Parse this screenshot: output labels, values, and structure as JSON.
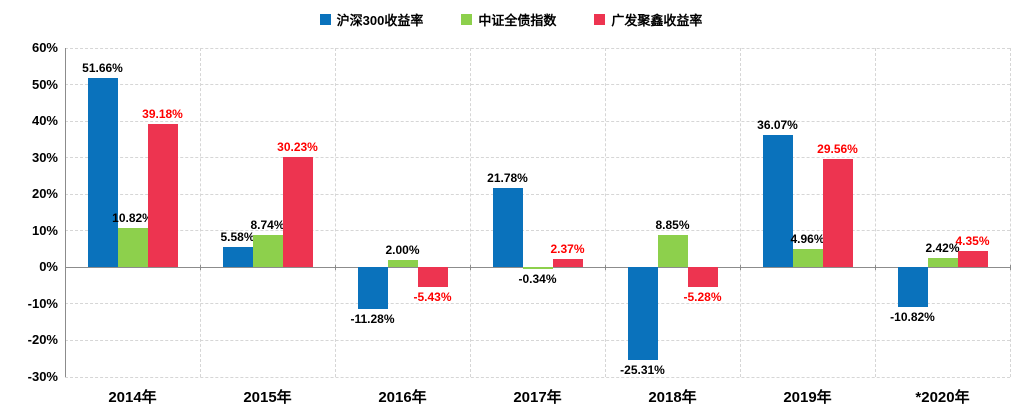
{
  "chart_data": {
    "type": "bar",
    "title": "",
    "categories": [
      "2014年",
      "2015年",
      "2016年",
      "2017年",
      "2018年",
      "2019年",
      "*2020年"
    ],
    "series": [
      {
        "name": "沪深300收益率",
        "color": "#0A72BC",
        "label_color": "#000000",
        "values": [
          51.66,
          5.58,
          -11.28,
          21.78,
          -25.31,
          36.07,
          -10.82
        ],
        "labels": [
          "51.66%",
          "5.58%",
          "-11.28%",
          "21.78%",
          "-25.31%",
          "36.07%",
          "-10.82%"
        ]
      },
      {
        "name": "中证全债指数",
        "color": "#8DD04C",
        "label_color": "#000000",
        "values": [
          10.82,
          8.74,
          2.0,
          -0.34,
          8.85,
          4.96,
          2.42
        ],
        "labels": [
          "10.82%",
          "8.74%",
          "2.00%",
          "-0.34%",
          "8.85%",
          "4.96%",
          "2.42%"
        ]
      },
      {
        "name": "广发聚鑫收益率",
        "color": "#ED3450",
        "label_color": "#FF0000",
        "values": [
          39.18,
          30.23,
          -5.43,
          2.37,
          -5.28,
          29.56,
          4.35
        ],
        "labels": [
          "39.18%",
          "30.23%",
          "-5.43%",
          "2.37%",
          "-5.28%",
          "29.56%",
          "4.35%"
        ]
      }
    ],
    "y_axis": {
      "min": -30,
      "max": 60,
      "step": 10,
      "tick_labels": [
        "60%",
        "50%",
        "40%",
        "30%",
        "20%",
        "10%",
        "0%",
        "-10%",
        "-20%",
        "-30%"
      ]
    },
    "legend_position": "top",
    "grid": true,
    "grid_color": "#d6d6d6",
    "axis_color": "#8c8c8c",
    "background": "#ffffff"
  }
}
